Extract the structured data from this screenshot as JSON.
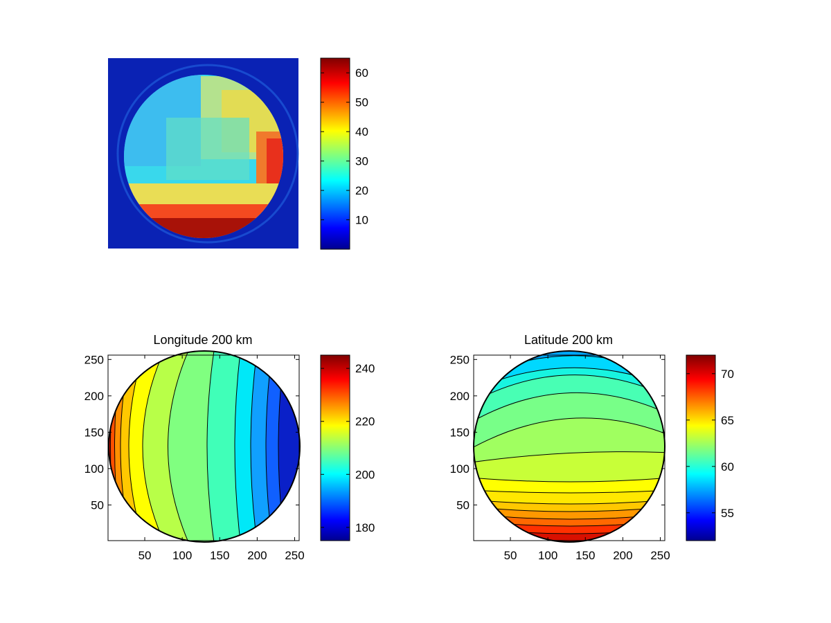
{
  "chart_data": [
    {
      "type": "heatmap",
      "title": "",
      "description_kind": "image",
      "colormap": "jet",
      "colorbar": {
        "min": 0,
        "max": 65,
        "ticks": [
          10,
          20,
          30,
          40,
          50,
          60
        ]
      },
      "grid": false
    },
    {
      "type": "heatmap",
      "title": "Longitude 200 km",
      "colormap": "jet",
      "xlim": [
        1,
        256
      ],
      "ylim": [
        1,
        256
      ],
      "xticks": [
        50,
        100,
        150,
        200,
        250
      ],
      "yticks": [
        50,
        100,
        150,
        200,
        250
      ],
      "colorbar": {
        "min": 175,
        "max": 245,
        "ticks": [
          180,
          200,
          220,
          240
        ]
      },
      "contour_levels": [
        180,
        185,
        190,
        195,
        200,
        205,
        210,
        215,
        220,
        225,
        230,
        235,
        240
      ],
      "grid": false
    },
    {
      "type": "heatmap",
      "title": "Latitude 200 km",
      "colormap": "jet",
      "xlim": [
        1,
        256
      ],
      "ylim": [
        1,
        256
      ],
      "xticks": [
        50,
        100,
        150,
        200,
        250
      ],
      "yticks": [
        50,
        100,
        150,
        200,
        250
      ],
      "colorbar": {
        "min": 52,
        "max": 72,
        "ticks": [
          55,
          60,
          65,
          70
        ]
      },
      "contour_levels": [
        53,
        54,
        55,
        56,
        57,
        58,
        59,
        60,
        61,
        62,
        63,
        64,
        65,
        66,
        67,
        68,
        69,
        70,
        71
      ],
      "grid": false
    }
  ]
}
